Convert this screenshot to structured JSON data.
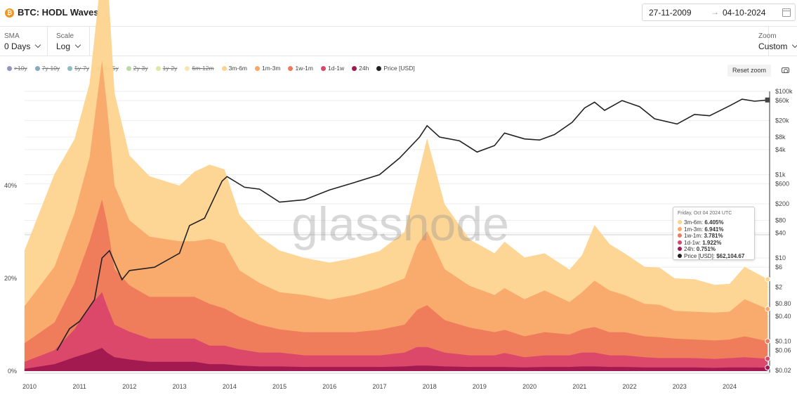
{
  "header": {
    "logo_glyph": "₿",
    "title": "BTC: HODL Waves",
    "date_from": "27-11-2009",
    "date_arrow": "→",
    "date_to": "04-10-2024",
    "calendar_icon": "calendar-icon"
  },
  "controls": {
    "sma_label": "SMA",
    "sma_value": "0 Days",
    "scale_label": "Scale",
    "scale_value": "Log",
    "zoom_label": "Zoom",
    "zoom_value": "Custom"
  },
  "toolbar": {
    "reset_zoom": "Reset zoom",
    "camera_icon": "camera-icon"
  },
  "legend": [
    {
      "label": ">10y",
      "color": "#4f4f8f",
      "enabled": false
    },
    {
      "label": "7y-10y",
      "color": "#3a6f8f",
      "enabled": false
    },
    {
      "label": "5y-7y",
      "color": "#3f9191",
      "enabled": false
    },
    {
      "label": "3y-5y",
      "color": "#5aab7a",
      "enabled": false
    },
    {
      "label": "2y-3y",
      "color": "#8cc46e",
      "enabled": false
    },
    {
      "label": "1y-2y",
      "color": "#c6d86e",
      "enabled": false
    },
    {
      "label": "6m-12m",
      "color": "#f2d57c",
      "enabled": false
    },
    {
      "label": "3m-6m",
      "color": "#fdd48f",
      "enabled": true
    },
    {
      "label": "1m-3m",
      "color": "#f9a86a",
      "enabled": true
    },
    {
      "label": "1w-1m",
      "color": "#ee7a5c",
      "enabled": true
    },
    {
      "label": "1d-1w",
      "color": "#d9466a",
      "enabled": true
    },
    {
      "label": "24h",
      "color": "#a0184f",
      "enabled": true
    },
    {
      "label": "Price [USD]",
      "color": "#222222",
      "enabled": true
    }
  ],
  "watermark": "glassnode",
  "tooltip": {
    "date": "Friday, Oct 04 2024 UTC",
    "rows": [
      {
        "label": "3m-6m: ",
        "value": "6.405%",
        "color": "#fdd48f"
      },
      {
        "label": "1m-3m: ",
        "value": "6.941%",
        "color": "#f9a86a"
      },
      {
        "label": "1w-1m: ",
        "value": "3.781%",
        "color": "#ee7a5c"
      },
      {
        "label": "1d-1w: ",
        "value": "1.922%",
        "color": "#d9466a"
      },
      {
        "label": "24h: ",
        "value": "0.751%",
        "color": "#a0184f"
      },
      {
        "label": "Price [USD]: ",
        "value": "$62,104.67",
        "color": "#222222"
      }
    ]
  },
  "chart_data": {
    "type": "area",
    "stacking": "stacked",
    "x_axis": {
      "ticks": [
        "2010",
        "2011",
        "2012",
        "2013",
        "2014",
        "2015",
        "2016",
        "2017",
        "2018",
        "2019",
        "2020",
        "2021",
        "2022",
        "2023",
        "2024"
      ]
    },
    "y_axis_left": {
      "ticks": [
        "0%",
        "20%",
        "40%"
      ],
      "range_percent": [
        0,
        60
      ]
    },
    "y_axis_right": {
      "scale": "log",
      "ticks": [
        "$0.02",
        "$0.06",
        "$0.10",
        "$0.40",
        "$0.80",
        "$2",
        "$6",
        "$10",
        "$40",
        "$80",
        "$200",
        "$600",
        "$1k",
        "$4k",
        "$8k",
        "$20k",
        "$60k",
        "$100k"
      ]
    },
    "x": [
      2009.9,
      2010.5,
      2010.9,
      2011.2,
      2011.45,
      2011.55,
      2011.7,
      2012.0,
      2012.4,
      2013.0,
      2013.3,
      2013.6,
      2013.9,
      2014.2,
      2014.6,
      2015.0,
      2015.5,
      2016.0,
      2016.5,
      2017.0,
      2017.5,
      2017.75,
      2017.95,
      2018.3,
      2018.8,
      2019.3,
      2019.5,
      2019.9,
      2020.3,
      2020.8,
      2021.05,
      2021.3,
      2021.6,
      2021.9,
      2022.3,
      2022.6,
      2022.9,
      2023.3,
      2023.7,
      2024.0,
      2024.3,
      2024.76
    ],
    "series": [
      {
        "name": "24h",
        "color": "#a0184f",
        "values": [
          0.5,
          1.5,
          3,
          4,
          5,
          4,
          3,
          2.5,
          2,
          2,
          2,
          1.5,
          1.5,
          1.2,
          1,
          1,
          0.9,
          0.9,
          0.9,
          0.9,
          1,
          1.2,
          1.2,
          1,
          0.9,
          0.9,
          0.9,
          0.8,
          0.9,
          0.9,
          1,
          1,
          0.9,
          0.9,
          0.8,
          0.8,
          0.8,
          0.8,
          0.7,
          0.8,
          0.8,
          0.751
        ]
      },
      {
        "name": "1d-1w",
        "color": "#d9466a",
        "values": [
          1.5,
          3,
          6,
          10,
          12,
          10,
          7,
          6,
          5,
          5,
          5,
          4,
          4,
          3.5,
          3,
          3,
          2.5,
          2.5,
          2.5,
          2.5,
          3,
          4,
          4,
          3,
          2.5,
          2.5,
          3,
          2.2,
          2.5,
          2.5,
          3,
          3,
          2.5,
          2.5,
          2.2,
          2,
          2,
          2,
          1.9,
          2,
          2.2,
          1.922
        ]
      },
      {
        "name": "1w-1m",
        "color": "#ee7a5c",
        "values": [
          4,
          6,
          10,
          14,
          20,
          18,
          12,
          10,
          9,
          9,
          9,
          9,
          8,
          7,
          6,
          5,
          5,
          5,
          5,
          5.5,
          6,
          8,
          9,
          7,
          6,
          5,
          5,
          4.5,
          5,
          4.5,
          5,
          5.5,
          5,
          5,
          4.5,
          4.5,
          4.2,
          4,
          4,
          4,
          4.5,
          3.781
        ]
      },
      {
        "name": "1m-3m",
        "color": "#f9a86a",
        "values": [
          8,
          12,
          15,
          18,
          30,
          25,
          18,
          14,
          13,
          12,
          12,
          14,
          14,
          10,
          9,
          8,
          8,
          7,
          8,
          9,
          10,
          14,
          16,
          11,
          9,
          8,
          9,
          8,
          9,
          7,
          8,
          10,
          9,
          8,
          7,
          7,
          6,
          6,
          6,
          6,
          8,
          6.941
        ]
      },
      {
        "name": "3m-6m",
        "color": "#fdd48f",
        "values": [
          12,
          20,
          16,
          16,
          20,
          30,
          20,
          14,
          13,
          12,
          15,
          16,
          16,
          12,
          10,
          9,
          8,
          8,
          8,
          8,
          10,
          14,
          20,
          14,
          10,
          9,
          10,
          9,
          8,
          7,
          8,
          12,
          10,
          9,
          8,
          8,
          7,
          7,
          6,
          6,
          7,
          6.405
        ]
      }
    ],
    "price_series": {
      "name": "Price [USD]",
      "color": "#222222",
      "x": [
        2010.55,
        2010.8,
        2011.0,
        2011.3,
        2011.45,
        2011.6,
        2011.85,
        2012.0,
        2012.5,
        2013.0,
        2013.2,
        2013.5,
        2013.85,
        2013.95,
        2014.3,
        2014.6,
        2015.0,
        2015.5,
        2016.0,
        2016.5,
        2017.0,
        2017.4,
        2017.8,
        2017.95,
        2018.2,
        2018.6,
        2018.95,
        2019.3,
        2019.5,
        2019.9,
        2020.2,
        2020.5,
        2020.85,
        2021.1,
        2021.3,
        2021.5,
        2021.85,
        2022.2,
        2022.5,
        2022.95,
        2023.3,
        2023.6,
        2024.0,
        2024.25,
        2024.5,
        2024.76
      ],
      "y": [
        0.06,
        0.2,
        0.3,
        1,
        10,
        15,
        3,
        5,
        6,
        13,
        60,
        90,
        700,
        900,
        500,
        450,
        220,
        250,
        430,
        650,
        1000,
        2500,
        8000,
        15000,
        8000,
        6500,
        3500,
        5000,
        10000,
        7200,
        6800,
        9200,
        18000,
        40000,
        55000,
        35000,
        60000,
        43000,
        22000,
        16500,
        28000,
        26000,
        45000,
        65000,
        58000,
        62104.67
      ]
    },
    "legend_placement": "top-left",
    "grid": true
  }
}
